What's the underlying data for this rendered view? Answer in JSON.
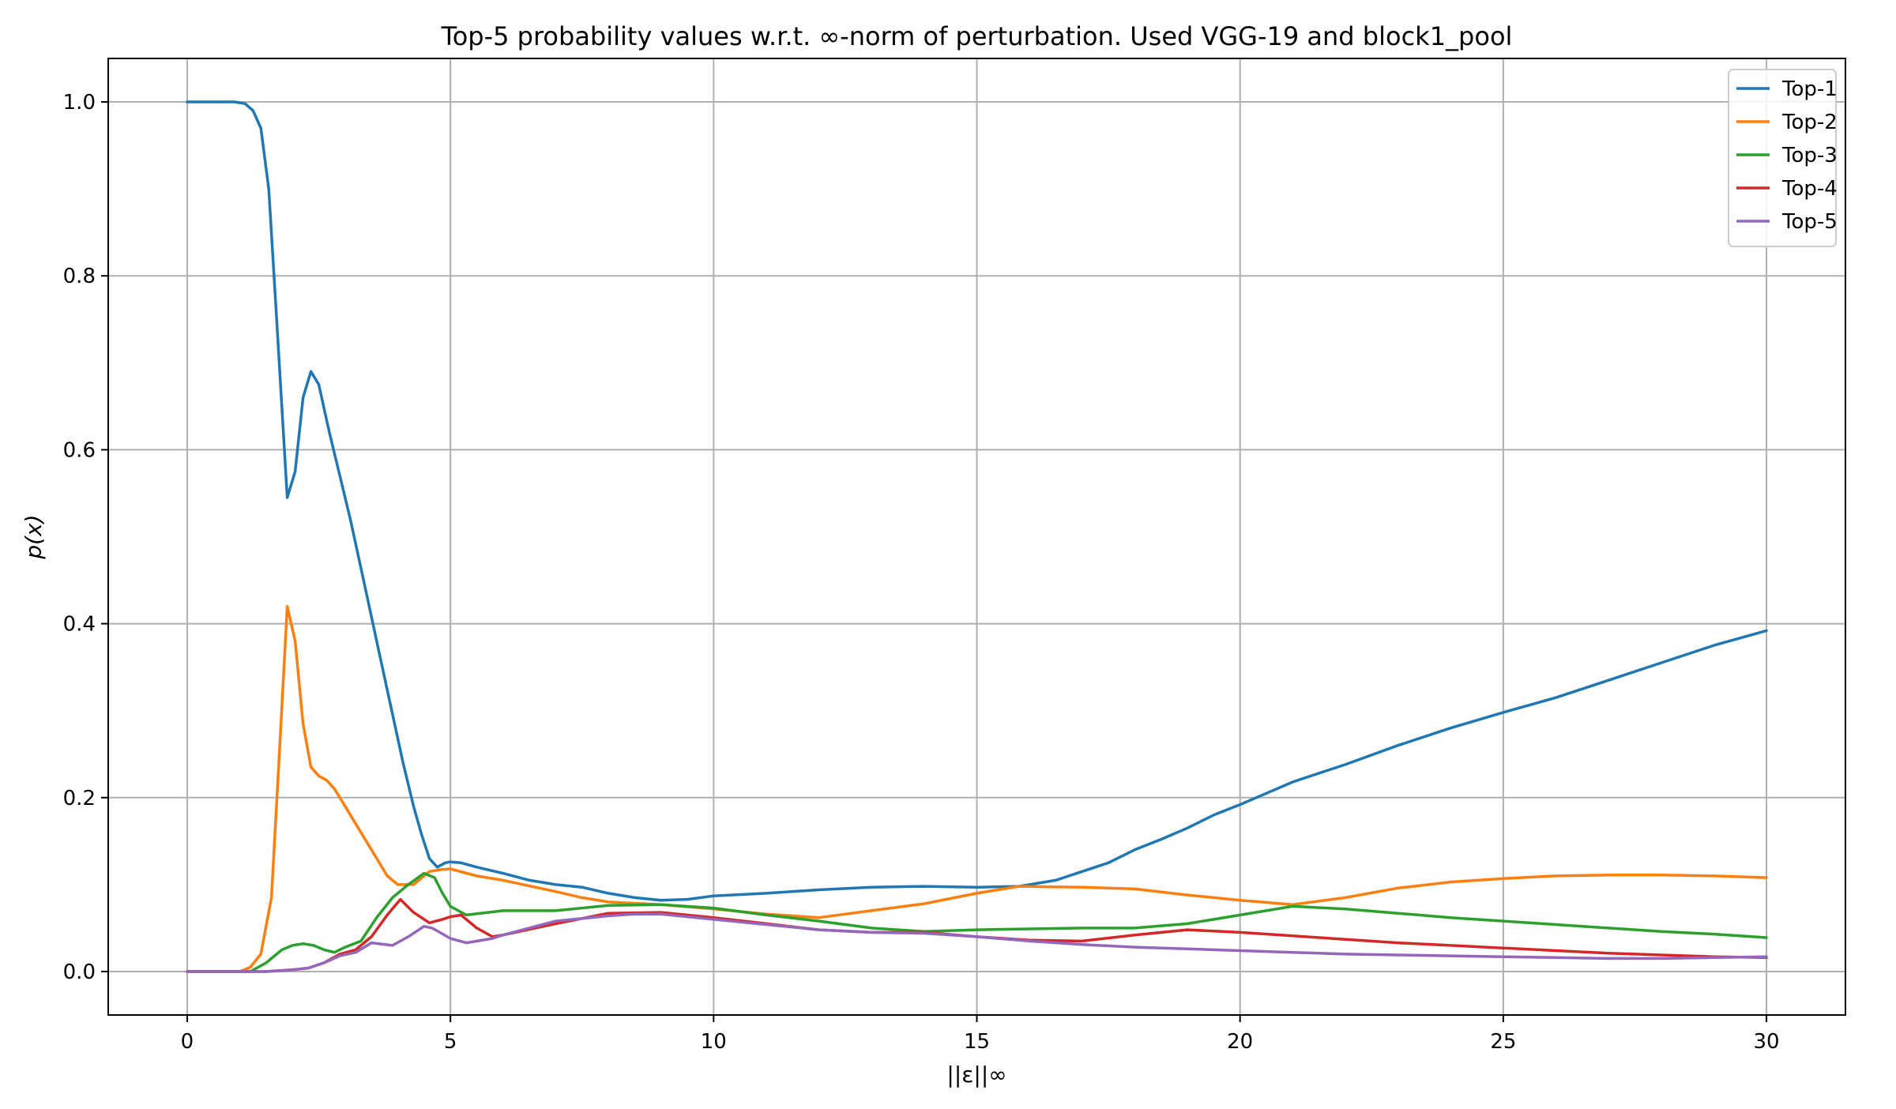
{
  "chart_data": {
    "type": "line",
    "title": "Top-5 probability values w.r.t. ∞-norm of perturbation. Used VGG-19 and block1_pool",
    "xlabel": "||ε||∞",
    "ylabel": "p(x)",
    "xlim": [
      -1.5,
      31.5
    ],
    "ylim": [
      -0.05,
      1.05
    ],
    "xticks": [
      0,
      5,
      10,
      15,
      20,
      25,
      30
    ],
    "xtick_labels": [
      "0",
      "5",
      "10",
      "15",
      "20",
      "25",
      "30"
    ],
    "yticks": [
      0.0,
      0.2,
      0.4,
      0.6,
      0.8,
      1.0
    ],
    "ytick_labels": [
      "0.0",
      "0.2",
      "0.4",
      "0.6",
      "0.8",
      "1.0"
    ],
    "grid": true,
    "legend_position": "top-right",
    "series": [
      {
        "name": "Top-1",
        "color": "#1f77b4",
        "x": [
          0,
          0.5,
          0.9,
          1.1,
          1.25,
          1.4,
          1.55,
          1.7,
          1.9,
          2.05,
          2.2,
          2.35,
          2.5,
          2.7,
          2.9,
          3.1,
          3.35,
          3.6,
          3.85,
          4.1,
          4.3,
          4.45,
          4.6,
          4.75,
          4.9,
          5.0,
          5.2,
          5.5,
          6.0,
          6.5,
          7.0,
          7.5,
          8.0,
          8.5,
          9.0,
          9.5,
          10,
          11,
          12,
          13,
          14,
          15,
          15.8,
          16.5,
          17,
          17.5,
          18,
          18.5,
          19,
          19.5,
          20,
          20.5,
          21,
          21.5,
          22,
          23,
          24,
          25,
          26,
          27,
          28,
          29,
          30
        ],
        "values": [
          1.0,
          1.0,
          1.0,
          0.998,
          0.99,
          0.97,
          0.9,
          0.75,
          0.545,
          0.575,
          0.66,
          0.69,
          0.675,
          0.62,
          0.57,
          0.52,
          0.45,
          0.38,
          0.31,
          0.24,
          0.19,
          0.158,
          0.13,
          0.12,
          0.125,
          0.126,
          0.125,
          0.12,
          0.113,
          0.105,
          0.1,
          0.097,
          0.09,
          0.085,
          0.082,
          0.083,
          0.087,
          0.09,
          0.094,
          0.097,
          0.098,
          0.097,
          0.098,
          0.105,
          0.115,
          0.125,
          0.14,
          0.152,
          0.165,
          0.18,
          0.192,
          0.205,
          0.218,
          0.228,
          0.238,
          0.26,
          0.28,
          0.298,
          0.315,
          0.335,
          0.355,
          0.375,
          0.392
        ]
      },
      {
        "name": "Top-2",
        "color": "#ff7f0e",
        "x": [
          0,
          1.0,
          1.2,
          1.4,
          1.6,
          1.75,
          1.9,
          2.05,
          2.2,
          2.35,
          2.5,
          2.65,
          2.8,
          3.0,
          3.25,
          3.5,
          3.8,
          4.0,
          4.3,
          4.6,
          4.8,
          5.0,
          5.5,
          6.0,
          7.0,
          7.5,
          8.0,
          9.0,
          10,
          11,
          12,
          13,
          14,
          15,
          15.8,
          17,
          18,
          19,
          20,
          21,
          22,
          23,
          24,
          25,
          26,
          27,
          28,
          29,
          30
        ],
        "values": [
          0.0,
          0.0,
          0.005,
          0.02,
          0.085,
          0.25,
          0.42,
          0.38,
          0.285,
          0.235,
          0.225,
          0.22,
          0.21,
          0.19,
          0.165,
          0.14,
          0.11,
          0.1,
          0.1,
          0.115,
          0.117,
          0.118,
          0.11,
          0.105,
          0.092,
          0.085,
          0.08,
          0.077,
          0.072,
          0.066,
          0.062,
          0.07,
          0.078,
          0.09,
          0.098,
          0.097,
          0.095,
          0.088,
          0.082,
          0.077,
          0.085,
          0.096,
          0.103,
          0.107,
          0.11,
          0.111,
          0.111,
          0.11,
          0.108
        ]
      },
      {
        "name": "Top-3",
        "color": "#2ca02c",
        "x": [
          0,
          1.2,
          1.5,
          1.8,
          2.0,
          2.2,
          2.4,
          2.6,
          2.8,
          3.0,
          3.3,
          3.6,
          3.9,
          4.2,
          4.5,
          4.7,
          4.85,
          5.0,
          5.3,
          6.0,
          7.0,
          8.0,
          9.0,
          10,
          11,
          12,
          13,
          14,
          15,
          16,
          17,
          18,
          19,
          20,
          21,
          22,
          23,
          24,
          25,
          26,
          27,
          28,
          29,
          30
        ],
        "values": [
          0.0,
          0.0,
          0.01,
          0.025,
          0.03,
          0.032,
          0.03,
          0.025,
          0.022,
          0.028,
          0.035,
          0.062,
          0.085,
          0.1,
          0.113,
          0.108,
          0.09,
          0.075,
          0.065,
          0.07,
          0.07,
          0.076,
          0.077,
          0.073,
          0.065,
          0.058,
          0.05,
          0.046,
          0.048,
          0.049,
          0.05,
          0.05,
          0.055,
          0.065,
          0.075,
          0.072,
          0.067,
          0.062,
          0.058,
          0.054,
          0.05,
          0.046,
          0.043,
          0.039
        ]
      },
      {
        "name": "Top-4",
        "color": "#d62728",
        "x": [
          0,
          1.5,
          2.0,
          2.3,
          2.6,
          2.9,
          3.2,
          3.5,
          3.8,
          4.05,
          4.3,
          4.6,
          4.85,
          5.0,
          5.2,
          5.5,
          5.8,
          6.0,
          7.0,
          8.0,
          9.0,
          10,
          11,
          12,
          13,
          14,
          15,
          16,
          17,
          18,
          19,
          20,
          21,
          22,
          23,
          24,
          25,
          26,
          27,
          28,
          29,
          30
        ],
        "values": [
          0.0,
          0.0,
          0.002,
          0.004,
          0.01,
          0.02,
          0.025,
          0.04,
          0.065,
          0.083,
          0.068,
          0.056,
          0.06,
          0.063,
          0.065,
          0.05,
          0.04,
          0.042,
          0.055,
          0.067,
          0.068,
          0.062,
          0.055,
          0.048,
          0.045,
          0.045,
          0.04,
          0.036,
          0.035,
          0.042,
          0.048,
          0.045,
          0.041,
          0.037,
          0.033,
          0.03,
          0.027,
          0.024,
          0.021,
          0.019,
          0.017,
          0.016
        ]
      },
      {
        "name": "Top-5",
        "color": "#9467bd",
        "x": [
          0,
          1.5,
          2.0,
          2.3,
          2.6,
          2.9,
          3.2,
          3.5,
          3.9,
          4.2,
          4.5,
          4.65,
          4.8,
          5.0,
          5.3,
          5.8,
          6.0,
          7.0,
          8.0,
          8.5,
          9.0,
          10,
          11,
          12,
          13,
          14,
          15,
          16,
          17,
          18,
          19,
          20,
          21,
          22,
          23,
          24,
          25,
          26,
          27,
          28,
          29,
          30
        ],
        "values": [
          0.0,
          0.0,
          0.002,
          0.004,
          0.01,
          0.018,
          0.022,
          0.033,
          0.03,
          0.04,
          0.052,
          0.05,
          0.045,
          0.038,
          0.033,
          0.038,
          0.042,
          0.058,
          0.064,
          0.066,
          0.066,
          0.06,
          0.054,
          0.048,
          0.045,
          0.044,
          0.04,
          0.035,
          0.031,
          0.028,
          0.026,
          0.024,
          0.022,
          0.02,
          0.019,
          0.018,
          0.017,
          0.016,
          0.015,
          0.015,
          0.016,
          0.017
        ]
      }
    ]
  }
}
